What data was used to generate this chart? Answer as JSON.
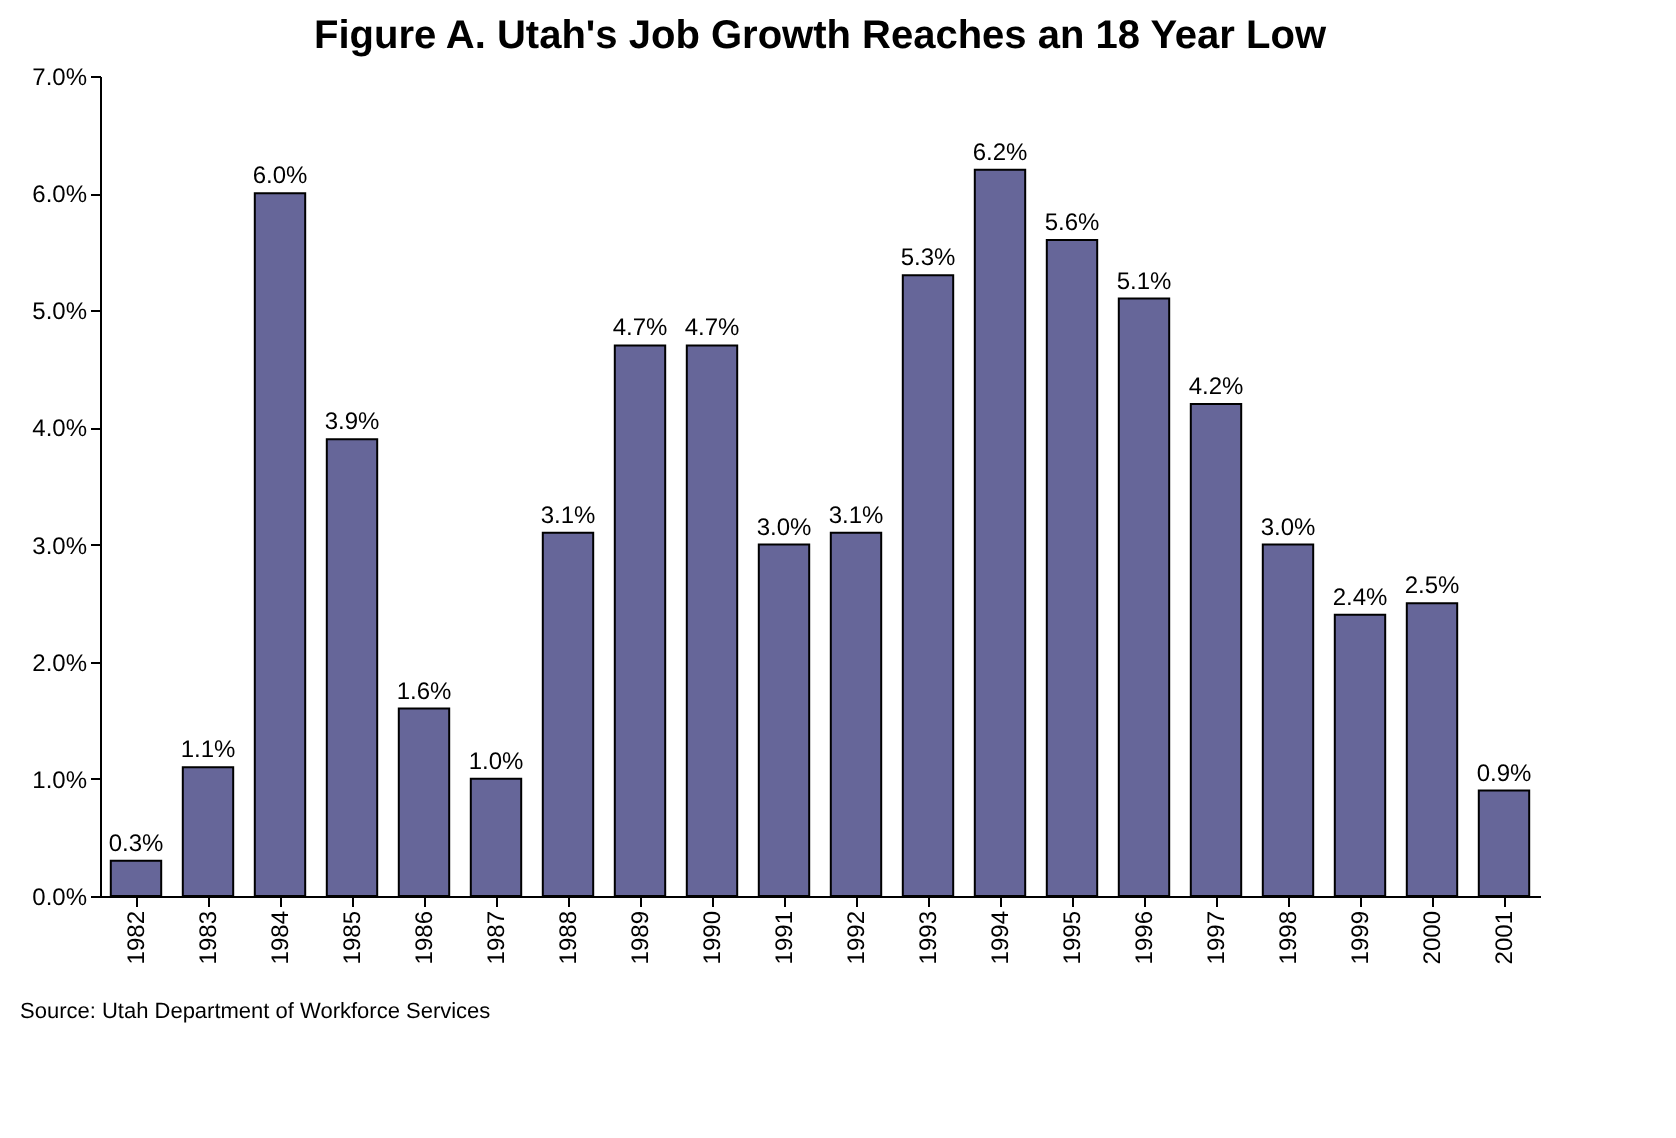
{
  "chart_data": {
    "type": "bar",
    "title": "Figure A. Utah's Job Growth Reaches an 18 Year Low",
    "categories": [
      "1982",
      "1983",
      "1984",
      "1985",
      "1986",
      "1987",
      "1988",
      "1989",
      "1990",
      "1991",
      "1992",
      "1993",
      "1994",
      "1995",
      "1996",
      "1997",
      "1998",
      "1999",
      "2000",
      "2001"
    ],
    "values": [
      0.3,
      1.1,
      6.0,
      3.9,
      1.6,
      1.0,
      3.1,
      4.7,
      4.7,
      3.0,
      3.1,
      5.3,
      6.2,
      5.6,
      5.1,
      4.2,
      3.0,
      2.4,
      2.5,
      0.9
    ],
    "value_labels": [
      "0.3%",
      "1.1%",
      "6.0%",
      "3.9%",
      "1.6%",
      "1.0%",
      "3.1%",
      "4.7%",
      "4.7%",
      "3.0%",
      "3.1%",
      "5.3%",
      "6.2%",
      "5.6%",
      "5.1%",
      "4.2%",
      "3.0%",
      "2.4%",
      "2.5%",
      "0.9%"
    ],
    "color": "#666699",
    "ylim": [
      0,
      7
    ],
    "yticks": [
      {
        "value": 0,
        "label": "0.0%"
      },
      {
        "value": 1,
        "label": "1.0%"
      },
      {
        "value": 2,
        "label": "2.0%"
      },
      {
        "value": 3,
        "label": "3.0%"
      },
      {
        "value": 4,
        "label": "4.0%"
      },
      {
        "value": 5,
        "label": "5.0%"
      },
      {
        "value": 6,
        "label": "6.0%"
      },
      {
        "value": 7,
        "label": "7.0%"
      }
    ],
    "annotations": [
      "Source: Utah Department of Workforce Services"
    ]
  }
}
